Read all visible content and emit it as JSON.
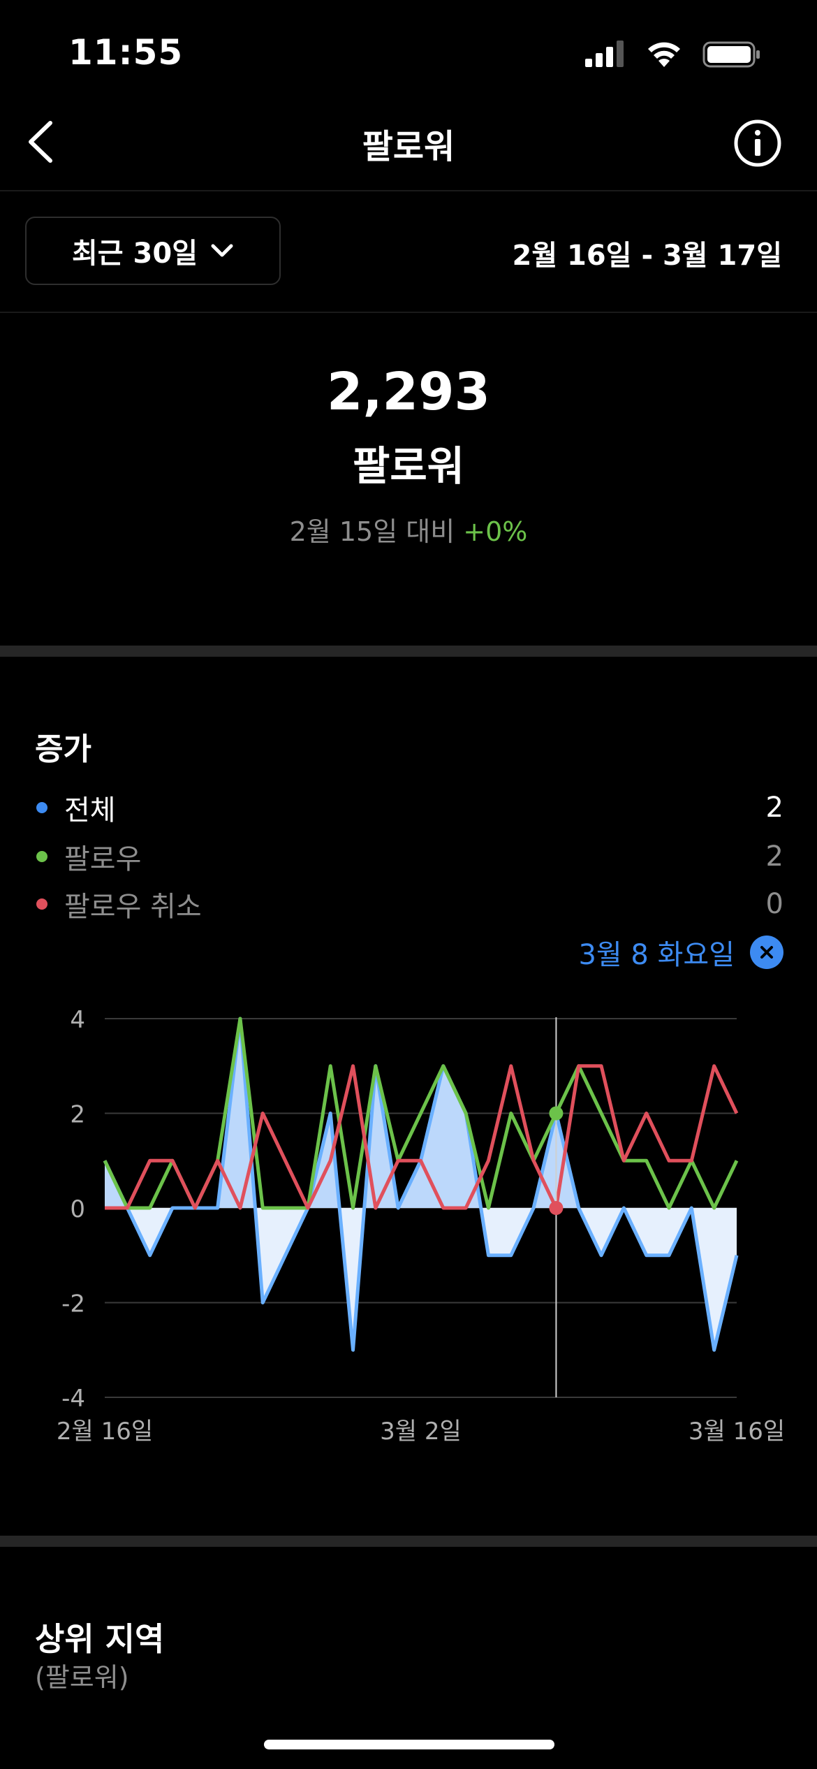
{
  "status_bar": {
    "time": "11:55"
  },
  "nav": {
    "title": "팔로워"
  },
  "range": {
    "selector_label": "최근 30일",
    "date_range": "2월 16일 - 3월 17일"
  },
  "summary": {
    "value": "2,293",
    "label": "팔로워",
    "compare_prefix": "2월 15일 대비 ",
    "compare_change": "+0%"
  },
  "growth": {
    "title": "증가",
    "legend": [
      {
        "label": "전체",
        "value": "2",
        "color": "#3d8bf2"
      },
      {
        "label": "팔로우",
        "value": "2",
        "color": "#6cc24a"
      },
      {
        "label": "팔로우 취소",
        "value": "0",
        "color": "#e0505c"
      }
    ],
    "selected_date": "3월 8 화요일"
  },
  "chart_data": {
    "type": "line",
    "y_ticks": [
      "4",
      "2",
      "0",
      "-2",
      "-4"
    ],
    "x_tick_labels": [
      "2월 16일",
      "3월 2일",
      "3월 16일"
    ],
    "ylim": [
      -4,
      4
    ],
    "grid": true,
    "x": [
      "2월 16일",
      "2월 17일",
      "2월 18일",
      "2월 19일",
      "2월 20일",
      "2월 21일",
      "2월 22일",
      "2월 23일",
      "2월 24일",
      "2월 25일",
      "2월 26일",
      "2월 27일",
      "2월 28일",
      "3월 1일",
      "3월 2일",
      "3월 3일",
      "3월 4일",
      "3월 5일",
      "3월 6일",
      "3월 7일",
      "3월 8일",
      "3월 9일",
      "3월 10일",
      "3월 11일",
      "3월 12일",
      "3월 13일",
      "3월 14일",
      "3월 15일",
      "3월 16일"
    ],
    "highlight_date": "3월 8일",
    "series": [
      {
        "name": "전체",
        "color": "#3d8bf2",
        "values": [
          1,
          0,
          -1,
          0,
          0,
          0,
          4,
          -2,
          -1,
          0,
          2,
          -3,
          3,
          0,
          1,
          3,
          2,
          -1,
          -1,
          0,
          2,
          0,
          -1,
          0,
          -1,
          -1,
          0,
          -3,
          -1
        ]
      },
      {
        "name": "팔로우",
        "color": "#6cc24a",
        "values": [
          1,
          0,
          0,
          1,
          0,
          1,
          4,
          0,
          0,
          0,
          3,
          0,
          3,
          1,
          2,
          3,
          2,
          0,
          2,
          1,
          2,
          3,
          2,
          1,
          1,
          0,
          1,
          0,
          1
        ]
      },
      {
        "name": "팔로우 취소",
        "color": "#e0505c",
        "values": [
          0,
          0,
          1,
          1,
          0,
          1,
          0,
          2,
          1,
          0,
          1,
          3,
          0,
          1,
          1,
          0,
          0,
          1,
          3,
          1,
          0,
          3,
          3,
          1,
          2,
          1,
          1,
          3,
          2
        ]
      }
    ]
  },
  "top_regions": {
    "title": "상위 지역",
    "subtitle": "(팔로워)"
  }
}
